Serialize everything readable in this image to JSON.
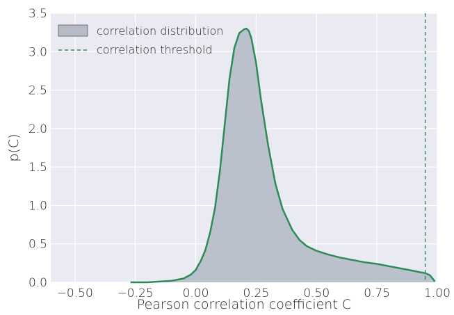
{
  "chart_data": {
    "type": "area",
    "xlabel": "Pearson correlation coefficient C",
    "ylabel": "p(C)",
    "xlim": [
      -0.6,
      1.0
    ],
    "ylim": [
      0,
      3.5
    ],
    "x_ticks": [
      -0.5,
      -0.25,
      0.0,
      0.25,
      0.5,
      0.75,
      1.0
    ],
    "x_tick_labels": [
      "−0.50",
      "−0.25",
      "0.00",
      "0.25",
      "0.50",
      "0.75",
      "1.00"
    ],
    "y_ticks": [
      0,
      0.5,
      1.0,
      1.5,
      2.0,
      2.5,
      3.0,
      3.5
    ],
    "y_tick_labels": [
      "0.0",
      "0.5",
      "1.0",
      "1.5",
      "2.0",
      "2.5",
      "3.0",
      "3.5"
    ],
    "grid": true,
    "legend_position": "top-left",
    "series": [
      {
        "name": "correlation distribution",
        "style": "filled-area",
        "fill_color": "#b6bcc8",
        "line_color": "#2e8b57",
        "x": [
          -0.27,
          -0.2,
          -0.15,
          -0.1,
          -0.05,
          -0.02,
          0.0,
          0.01,
          0.02,
          0.04,
          0.06,
          0.08,
          0.1,
          0.12,
          0.14,
          0.16,
          0.18,
          0.2,
          0.21,
          0.22,
          0.23,
          0.25,
          0.27,
          0.3,
          0.33,
          0.36,
          0.4,
          0.43,
          0.46,
          0.5,
          0.55,
          0.6,
          0.65,
          0.7,
          0.75,
          0.8,
          0.85,
          0.9,
          0.93,
          0.95,
          0.97,
          0.98,
          0.99
        ],
        "y": [
          0.0,
          0.0,
          0.01,
          0.02,
          0.05,
          0.1,
          0.16,
          0.22,
          0.27,
          0.42,
          0.65,
          0.97,
          1.45,
          2.05,
          2.65,
          3.05,
          3.24,
          3.29,
          3.3,
          3.27,
          3.18,
          2.85,
          2.38,
          1.78,
          1.28,
          0.95,
          0.68,
          0.55,
          0.47,
          0.41,
          0.36,
          0.32,
          0.29,
          0.26,
          0.24,
          0.21,
          0.18,
          0.15,
          0.13,
          0.12,
          0.09,
          0.05,
          0.01
        ]
      },
      {
        "name": "correlation threshold",
        "style": "dashed-vertical-line",
        "line_color": "#2e8b57",
        "x_value": 0.95
      }
    ]
  }
}
